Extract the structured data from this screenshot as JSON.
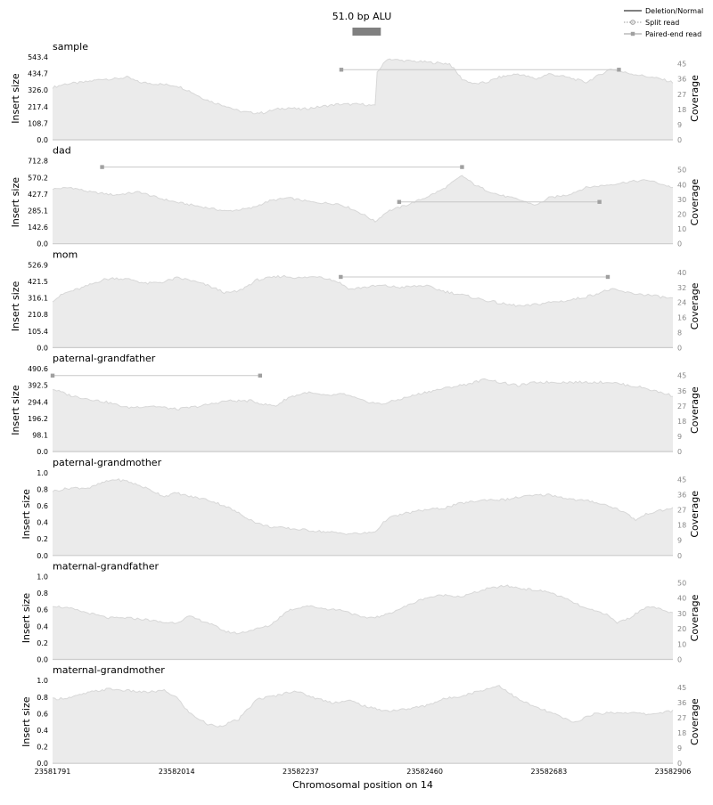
{
  "chart_data": {
    "type": "area",
    "title": "51.0 bp ALU",
    "xlabel": "Chromosomal position on 14",
    "x_ticks": [
      "23581791",
      "23582014",
      "23582237",
      "23582460",
      "23582683",
      "23582906"
    ],
    "xlim": [
      23581791,
      23582906
    ],
    "variant_span": [
      23582330,
      23582381
    ],
    "legend": {
      "position": "top-right",
      "entries": [
        "Deletion/Normal",
        "Split read",
        "Paired-end read"
      ]
    },
    "left_axis_label": "Insert size",
    "right_axis_label": "Coverage",
    "colors": {
      "coverage_fill": "#ebebeb",
      "coverage_line": "#d8d8d8",
      "read_line": "#c8c8c8",
      "read_marker": "#a0a0a0",
      "variant_bar": "#808080"
    },
    "panels": [
      {
        "name": "sample",
        "insert_ticks": [
          "0.0",
          "108.7",
          "217.4",
          "326.0",
          "434.7",
          "543.4"
        ],
        "insert_max": 543.4,
        "coverage_ticks": [
          "0",
          "9",
          "18",
          "27",
          "36",
          "45"
        ],
        "coverage_max": 49,
        "coverage": [
          [
            0,
            31
          ],
          [
            0.02,
            33
          ],
          [
            0.05,
            34
          ],
          [
            0.08,
            36
          ],
          [
            0.1,
            36
          ],
          [
            0.12,
            37
          ],
          [
            0.14,
            34
          ],
          [
            0.17,
            33
          ],
          [
            0.2,
            32
          ],
          [
            0.22,
            29
          ],
          [
            0.24,
            25
          ],
          [
            0.26,
            22
          ],
          [
            0.28,
            20
          ],
          [
            0.3,
            17
          ],
          [
            0.32,
            16
          ],
          [
            0.34,
            16
          ],
          [
            0.36,
            18
          ],
          [
            0.38,
            19
          ],
          [
            0.4,
            18
          ],
          [
            0.42,
            19
          ],
          [
            0.44,
            20
          ],
          [
            0.46,
            21
          ],
          [
            0.48,
            21
          ],
          [
            0.5,
            21
          ],
          [
            0.52,
            20
          ],
          [
            0.523,
            40
          ],
          [
            0.54,
            48
          ],
          [
            0.56,
            47
          ],
          [
            0.6,
            46
          ],
          [
            0.64,
            45
          ],
          [
            0.66,
            36
          ],
          [
            0.68,
            33
          ],
          [
            0.7,
            34
          ],
          [
            0.72,
            37
          ],
          [
            0.75,
            39
          ],
          [
            0.78,
            36
          ],
          [
            0.8,
            39
          ],
          [
            0.83,
            37
          ],
          [
            0.86,
            34
          ],
          [
            0.88,
            38
          ],
          [
            0.9,
            42
          ],
          [
            0.92,
            40
          ],
          [
            0.95,
            38
          ],
          [
            0.98,
            36
          ],
          [
            1,
            34
          ]
        ],
        "reads": [
          {
            "type": "paired",
            "start": 23582310,
            "end": 23582809,
            "insert": 460
          }
        ]
      },
      {
        "name": "dad",
        "insert_ticks": [
          "0.0",
          "142.6",
          "285.1",
          "427.7",
          "570.2",
          "712.8"
        ],
        "insert_max": 712.8,
        "coverage_ticks": [
          "0",
          "10",
          "20",
          "30",
          "40",
          "50"
        ],
        "coverage_max": 56,
        "coverage": [
          [
            0,
            37
          ],
          [
            0.03,
            38
          ],
          [
            0.06,
            35
          ],
          [
            0.1,
            33
          ],
          [
            0.14,
            35
          ],
          [
            0.17,
            31
          ],
          [
            0.2,
            28
          ],
          [
            0.24,
            25
          ],
          [
            0.28,
            22
          ],
          [
            0.32,
            24
          ],
          [
            0.35,
            29
          ],
          [
            0.38,
            31
          ],
          [
            0.42,
            28
          ],
          [
            0.46,
            27
          ],
          [
            0.48,
            24
          ],
          [
            0.5,
            20
          ],
          [
            0.52,
            15
          ],
          [
            0.54,
            22
          ],
          [
            0.57,
            26
          ],
          [
            0.6,
            31
          ],
          [
            0.63,
            37
          ],
          [
            0.66,
            46
          ],
          [
            0.68,
            40
          ],
          [
            0.7,
            36
          ],
          [
            0.72,
            33
          ],
          [
            0.75,
            30
          ],
          [
            0.78,
            26
          ],
          [
            0.8,
            31
          ],
          [
            0.83,
            33
          ],
          [
            0.86,
            38
          ],
          [
            0.9,
            40
          ],
          [
            0.93,
            42
          ],
          [
            0.96,
            43
          ],
          [
            1,
            38
          ]
        ],
        "reads": [
          {
            "type": "paired",
            "start": 23581880,
            "end": 23582527,
            "insert": 660
          },
          {
            "type": "paired",
            "start": 23582414,
            "end": 23582774,
            "insert": 360
          }
        ]
      },
      {
        "name": "mom",
        "insert_ticks": [
          "0.0",
          "105.4",
          "210.8",
          "316.1",
          "421.5",
          "526.9"
        ],
        "insert_max": 526.9,
        "coverage_ticks": [
          "0",
          "8",
          "16",
          "24",
          "32",
          "40"
        ],
        "coverage_max": 44,
        "coverage": [
          [
            0,
            25
          ],
          [
            0.02,
            29
          ],
          [
            0.05,
            32
          ],
          [
            0.08,
            36
          ],
          [
            0.1,
            37
          ],
          [
            0.13,
            36
          ],
          [
            0.15,
            34
          ],
          [
            0.18,
            35
          ],
          [
            0.2,
            37
          ],
          [
            0.22,
            36
          ],
          [
            0.25,
            33
          ],
          [
            0.28,
            29
          ],
          [
            0.3,
            30
          ],
          [
            0.33,
            36
          ],
          [
            0.37,
            38
          ],
          [
            0.4,
            37
          ],
          [
            0.43,
            38
          ],
          [
            0.46,
            35
          ],
          [
            0.48,
            31
          ],
          [
            0.5,
            32
          ],
          [
            0.53,
            33
          ],
          [
            0.56,
            32
          ],
          [
            0.6,
            33
          ],
          [
            0.63,
            30
          ],
          [
            0.66,
            28
          ],
          [
            0.7,
            25
          ],
          [
            0.73,
            23
          ],
          [
            0.76,
            22
          ],
          [
            0.8,
            24
          ],
          [
            0.83,
            25
          ],
          [
            0.86,
            27
          ],
          [
            0.9,
            31
          ],
          [
            0.93,
            29
          ],
          [
            0.96,
            28
          ],
          [
            1,
            26
          ]
        ],
        "reads": [
          {
            "type": "paired",
            "start": 23582309,
            "end": 23582789,
            "insert": 450
          }
        ]
      },
      {
        "name": "paternal-grandfather",
        "insert_ticks": [
          "0.0",
          "98.1",
          "196.2",
          "294.4",
          "392.5",
          "490.6"
        ],
        "insert_max": 490.6,
        "coverage_ticks": [
          "0",
          "9",
          "18",
          "27",
          "36",
          "45"
        ],
        "coverage_max": 49,
        "coverage": [
          [
            0,
            37
          ],
          [
            0.03,
            33
          ],
          [
            0.06,
            31
          ],
          [
            0.09,
            29
          ],
          [
            0.12,
            26
          ],
          [
            0.16,
            27
          ],
          [
            0.2,
            25
          ],
          [
            0.24,
            27
          ],
          [
            0.28,
            30
          ],
          [
            0.32,
            30
          ],
          [
            0.34,
            28
          ],
          [
            0.36,
            27
          ],
          [
            0.38,
            32
          ],
          [
            0.41,
            35
          ],
          [
            0.44,
            33
          ],
          [
            0.47,
            34
          ],
          [
            0.5,
            30
          ],
          [
            0.53,
            28
          ],
          [
            0.56,
            31
          ],
          [
            0.6,
            35
          ],
          [
            0.64,
            38
          ],
          [
            0.67,
            40
          ],
          [
            0.7,
            43
          ],
          [
            0.72,
            41
          ],
          [
            0.75,
            39
          ],
          [
            0.78,
            41
          ],
          [
            0.82,
            41
          ],
          [
            0.86,
            41
          ],
          [
            0.9,
            41
          ],
          [
            0.93,
            39
          ],
          [
            0.95,
            38
          ],
          [
            0.97,
            36
          ],
          [
            1,
            33
          ]
        ],
        "reads": [
          {
            "type": "paired",
            "start": 23581791,
            "end": 23582164,
            "insert": 450
          }
        ]
      },
      {
        "name": "paternal-grandmother",
        "insert_ticks": [
          "0.0",
          "0.2",
          "0.4",
          "0.6",
          "0.8",
          "1.0"
        ],
        "insert_max": 1.0,
        "coverage_ticks": [
          "0",
          "9",
          "18",
          "27",
          "36",
          "45"
        ],
        "coverage_max": 49,
        "coverage": [
          [
            0,
            38
          ],
          [
            0.03,
            40
          ],
          [
            0.06,
            40
          ],
          [
            0.08,
            43
          ],
          [
            0.1,
            45
          ],
          [
            0.12,
            44
          ],
          [
            0.15,
            40
          ],
          [
            0.18,
            35
          ],
          [
            0.2,
            37
          ],
          [
            0.22,
            35
          ],
          [
            0.25,
            33
          ],
          [
            0.28,
            29
          ],
          [
            0.3,
            25
          ],
          [
            0.33,
            19
          ],
          [
            0.35,
            17
          ],
          [
            0.38,
            16
          ],
          [
            0.41,
            15
          ],
          [
            0.44,
            14
          ],
          [
            0.47,
            13
          ],
          [
            0.5,
            13
          ],
          [
            0.52,
            14
          ],
          [
            0.54,
            22
          ],
          [
            0.57,
            25
          ],
          [
            0.6,
            27
          ],
          [
            0.63,
            28
          ],
          [
            0.66,
            31
          ],
          [
            0.7,
            33
          ],
          [
            0.73,
            33
          ],
          [
            0.76,
            35
          ],
          [
            0.8,
            36
          ],
          [
            0.84,
            33
          ],
          [
            0.87,
            32
          ],
          [
            0.9,
            29
          ],
          [
            0.92,
            26
          ],
          [
            0.94,
            21
          ],
          [
            0.96,
            25
          ],
          [
            1,
            28
          ]
        ],
        "reads": []
      },
      {
        "name": "maternal-grandfather",
        "insert_ticks": [
          "0.0",
          "0.2",
          "0.4",
          "0.6",
          "0.8",
          "1.0"
        ],
        "insert_max": 1.0,
        "coverage_ticks": [
          "0",
          "10",
          "20",
          "30",
          "40",
          "50"
        ],
        "coverage_max": 54,
        "coverage": [
          [
            0,
            35
          ],
          [
            0.03,
            33
          ],
          [
            0.06,
            30
          ],
          [
            0.09,
            27
          ],
          [
            0.12,
            27
          ],
          [
            0.15,
            26
          ],
          [
            0.18,
            24
          ],
          [
            0.2,
            24
          ],
          [
            0.22,
            28
          ],
          [
            0.25,
            24
          ],
          [
            0.28,
            18
          ],
          [
            0.3,
            17
          ],
          [
            0.33,
            20
          ],
          [
            0.35,
            22
          ],
          [
            0.38,
            32
          ],
          [
            0.41,
            35
          ],
          [
            0.44,
            33
          ],
          [
            0.47,
            32
          ],
          [
            0.5,
            27
          ],
          [
            0.53,
            28
          ],
          [
            0.56,
            33
          ],
          [
            0.6,
            40
          ],
          [
            0.63,
            42
          ],
          [
            0.66,
            41
          ],
          [
            0.7,
            46
          ],
          [
            0.73,
            48
          ],
          [
            0.76,
            46
          ],
          [
            0.8,
            44
          ],
          [
            0.83,
            39
          ],
          [
            0.86,
            33
          ],
          [
            0.89,
            30
          ],
          [
            0.91,
            24
          ],
          [
            0.93,
            27
          ],
          [
            0.96,
            35
          ],
          [
            1,
            30
          ]
        ],
        "reads": []
      },
      {
        "name": "maternal-grandmother",
        "insert_ticks": [
          "0.0",
          "0.2",
          "0.4",
          "0.6",
          "0.8",
          "1.0"
        ],
        "insert_max": 1.0,
        "coverage_ticks": [
          "0",
          "9",
          "18",
          "27",
          "36",
          "45"
        ],
        "coverage_max": 49,
        "coverage": [
          [
            0,
            38
          ],
          [
            0.03,
            39
          ],
          [
            0.06,
            42
          ],
          [
            0.09,
            44
          ],
          [
            0.12,
            43
          ],
          [
            0.15,
            42
          ],
          [
            0.18,
            43
          ],
          [
            0.2,
            39
          ],
          [
            0.22,
            30
          ],
          [
            0.25,
            23
          ],
          [
            0.27,
            22
          ],
          [
            0.3,
            26
          ],
          [
            0.33,
            38
          ],
          [
            0.36,
            40
          ],
          [
            0.39,
            43
          ],
          [
            0.42,
            39
          ],
          [
            0.45,
            36
          ],
          [
            0.48,
            37
          ],
          [
            0.51,
            33
          ],
          [
            0.54,
            31
          ],
          [
            0.57,
            32
          ],
          [
            0.6,
            34
          ],
          [
            0.63,
            38
          ],
          [
            0.66,
            40
          ],
          [
            0.69,
            43
          ],
          [
            0.72,
            46
          ],
          [
            0.75,
            38
          ],
          [
            0.78,
            33
          ],
          [
            0.81,
            29
          ],
          [
            0.84,
            24
          ],
          [
            0.87,
            29
          ],
          [
            0.9,
            30
          ],
          [
            0.93,
            30
          ],
          [
            0.96,
            29
          ],
          [
            1,
            31
          ]
        ],
        "reads": []
      }
    ]
  }
}
